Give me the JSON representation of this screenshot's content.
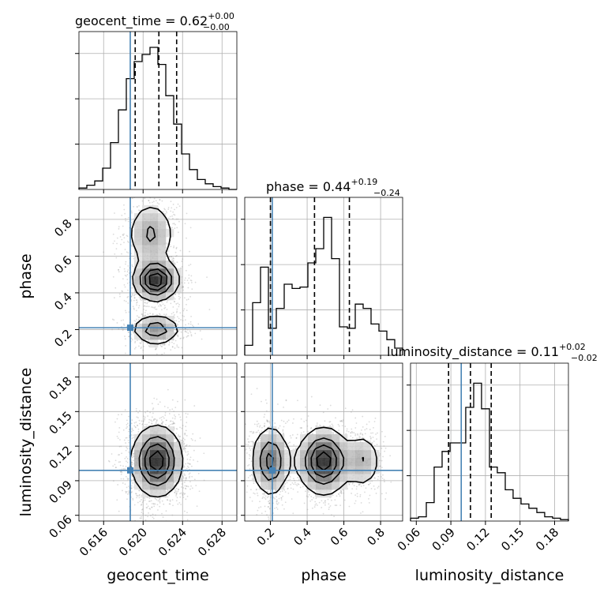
{
  "chart_data": {
    "type": "corner",
    "parameters": [
      "geocent_time",
      "phase",
      "luminosity_distance"
    ],
    "truths": {
      "geocent_time": 0.6187,
      "phase": 0.21,
      "luminosity_distance": 0.099
    },
    "titles": {
      "geocent_time": {
        "name": "geocent_time",
        "median": "0.62",
        "plus": "+0.00",
        "minus": "−0.00"
      },
      "phase": {
        "name": "phase",
        "median": "0.44",
        "plus": "+0.19",
        "minus": "−0.24"
      },
      "luminosity_distance": {
        "name": "luminosity_distance",
        "median": "0.11",
        "plus": "+0.02",
        "minus": "−0.02"
      }
    },
    "xlabels": [
      "geocent_time",
      "phase",
      "luminosity_distance"
    ],
    "ylabels": [
      "phase",
      "luminosity_distance"
    ],
    "ranges": {
      "geocent_time": [
        0.6135,
        0.6295
      ],
      "phase": [
        0.06,
        0.92
      ],
      "luminosity_distance": [
        0.055,
        0.192
      ]
    },
    "ticks": {
      "geocent_time": [
        0.616,
        0.62,
        0.624,
        0.628
      ],
      "phase": [
        0.2,
        0.4,
        0.6,
        0.8
      ],
      "luminosity_distance": [
        0.06,
        0.09,
        0.12,
        0.15,
        0.18
      ]
    },
    "tick_labels": {
      "geocent_time": [
        "0.616",
        "0.620",
        "0.624",
        "0.628"
      ],
      "phase": [
        "0.2",
        "0.4",
        "0.6",
        "0.8"
      ],
      "luminosity_distance": [
        "0.06",
        "0.09",
        "0.12",
        "0.15",
        "0.18"
      ]
    },
    "quantiles": {
      "geocent_time": [
        0.6192,
        0.6216,
        0.6234
      ],
      "phase": [
        0.2,
        0.44,
        0.63
      ],
      "luminosity_distance": [
        0.088,
        0.107,
        0.125
      ]
    },
    "histograms": {
      "geocent_time": {
        "edges": [
          0.6135,
          0.6143,
          0.6151,
          0.6159,
          0.6167,
          0.6175,
          0.6183,
          0.6191,
          0.6199,
          0.6207,
          0.6215,
          0.6223,
          0.6231,
          0.6239,
          0.6247,
          0.6255,
          0.6263,
          0.6271,
          0.6279,
          0.6287,
          0.6295
        ],
        "counts": [
          0.01,
          0.03,
          0.06,
          0.15,
          0.33,
          0.56,
          0.78,
          0.9,
          0.95,
          1.0,
          0.88,
          0.66,
          0.46,
          0.25,
          0.14,
          0.07,
          0.04,
          0.02,
          0.01,
          0.0
        ]
      },
      "phase": {
        "edges": [
          0.06,
          0.103,
          0.146,
          0.189,
          0.232,
          0.275,
          0.318,
          0.361,
          0.404,
          0.447,
          0.49,
          0.533,
          0.576,
          0.619,
          0.662,
          0.705,
          0.748,
          0.791,
          0.834,
          0.877,
          0.92
        ],
        "counts": [
          0.07,
          0.37,
          0.62,
          0.19,
          0.33,
          0.5,
          0.47,
          0.48,
          0.65,
          0.75,
          0.97,
          0.68,
          0.2,
          0.19,
          0.36,
          0.33,
          0.22,
          0.17,
          0.11,
          0.05
        ]
      },
      "luminosity_distance": {
        "edges": [
          0.055,
          0.0619,
          0.0687,
          0.0755,
          0.0824,
          0.0893,
          0.0961,
          0.1029,
          0.1098,
          0.1166,
          0.1235,
          0.1303,
          0.1372,
          0.144,
          0.1509,
          0.1577,
          0.1646,
          0.1714,
          0.1783,
          0.1851,
          0.192
        ],
        "counts": [
          0.02,
          0.03,
          0.13,
          0.38,
          0.49,
          0.55,
          0.55,
          0.8,
          0.97,
          0.79,
          0.38,
          0.34,
          0.22,
          0.16,
          0.12,
          0.09,
          0.06,
          0.03,
          0.02,
          0.01
        ]
      }
    },
    "modes": {
      "geocent_time|phase": [
        {
          "x": 0.6213,
          "y": 0.47,
          "sx": 0.0011,
          "sy": 0.055,
          "w": 1.0
        },
        {
          "x": 0.6213,
          "y": 0.2,
          "sx": 0.0012,
          "sy": 0.04,
          "w": 0.55
        },
        {
          "x": 0.6208,
          "y": 0.72,
          "sx": 0.0012,
          "sy": 0.09,
          "w": 0.4
        }
      ],
      "geocent_time|luminosity_distance": [
        {
          "x": 0.6214,
          "y": 0.107,
          "sx": 0.00125,
          "sy": 0.015,
          "w": 1.0
        }
      ],
      "phase|luminosity_distance": [
        {
          "x": 0.49,
          "y": 0.107,
          "sx": 0.07,
          "sy": 0.014,
          "w": 1.0
        },
        {
          "x": 0.2,
          "y": 0.107,
          "sx": 0.05,
          "sy": 0.015,
          "w": 0.7
        },
        {
          "x": 0.7,
          "y": 0.107,
          "sx": 0.05,
          "sy": 0.012,
          "w": 0.38
        }
      ]
    },
    "grid": true,
    "colors": {
      "truth": "#4682b4",
      "line": "#000000",
      "scatter": "#999999"
    }
  }
}
